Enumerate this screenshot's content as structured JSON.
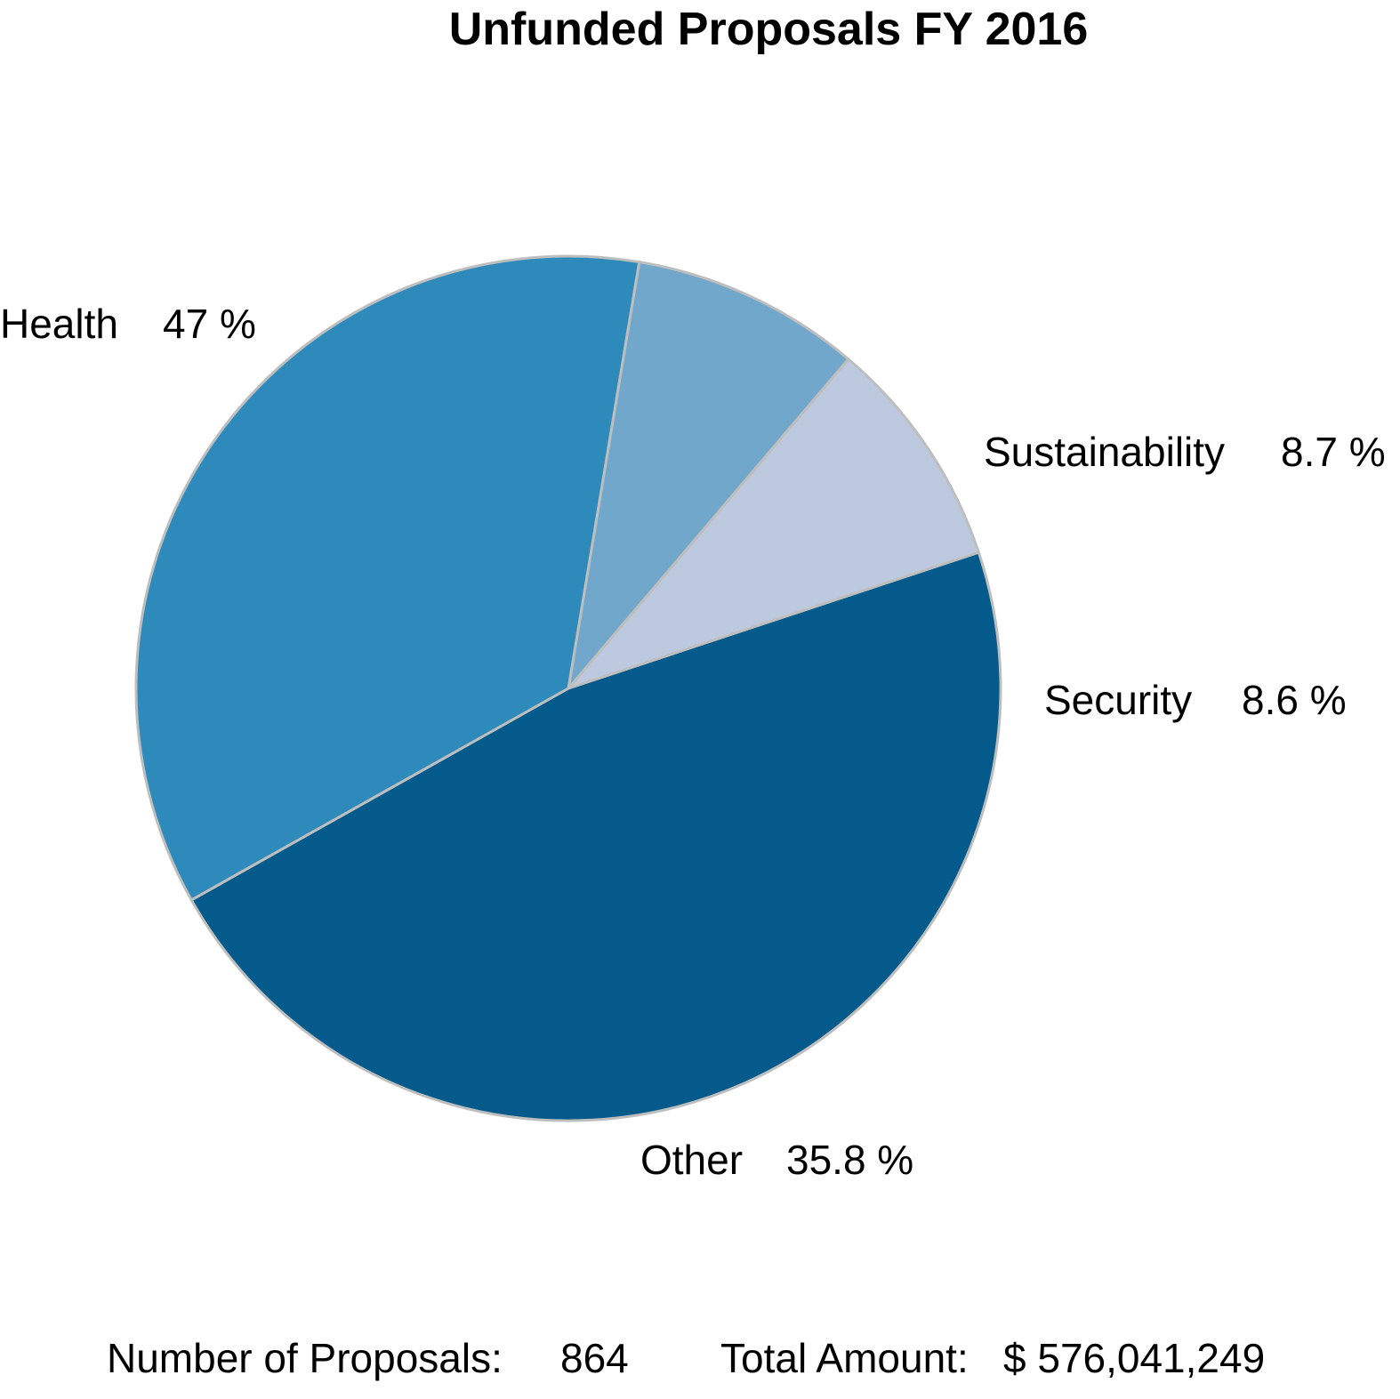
{
  "chart_data": {
    "type": "pie",
    "title": "Unfunded Proposals FY 2016",
    "slices": [
      {
        "name": "Health",
        "value": 47,
        "value_label": "47 %",
        "color": "#035A8B"
      },
      {
        "name": "Sustainability",
        "value": 8.7,
        "value_label": "8.7 %",
        "color": "#BDC9DF"
      },
      {
        "name": "Security",
        "value": 8.6,
        "value_label": "8.6 %",
        "color": "#71A7CB"
      },
      {
        "name": "Other",
        "value": 35.8,
        "value_label": "35.8 %",
        "color": "#2D8ABB"
      }
    ],
    "slice_border_color": "#BEBEBE",
    "legend": "none"
  },
  "footer": {
    "proposals_label": "Number of Proposals:",
    "proposals_value": "864",
    "amount_label": "Total Amount:",
    "amount_value": "$ 576,041,249"
  }
}
